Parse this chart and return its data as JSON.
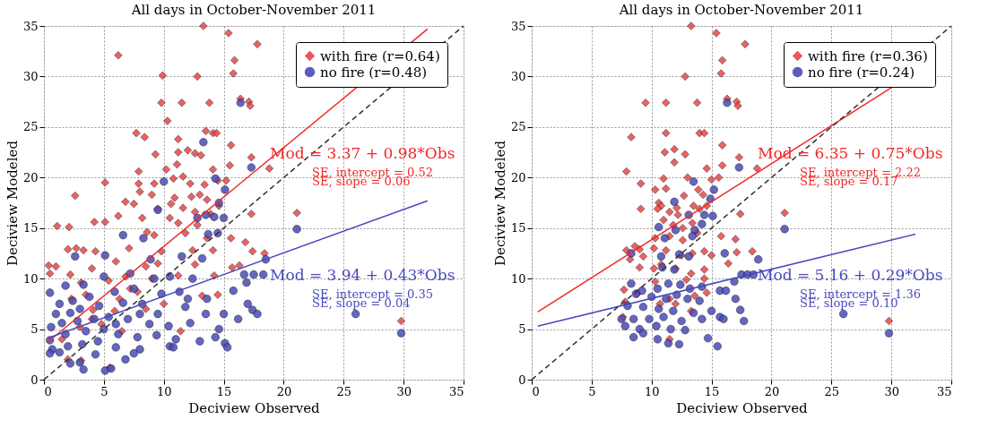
{
  "chart_data": [
    {
      "type": "scatter",
      "title": "All days in October-November 2011",
      "xlabel": "Deciview Observed",
      "ylabel": "Deciview Modeled",
      "xlim": [
        0,
        35
      ],
      "ylim": [
        0,
        35
      ],
      "xticks": [
        0,
        5,
        10,
        15,
        20,
        25,
        30,
        35
      ],
      "yticks": [
        0,
        5,
        10,
        15,
        20,
        25,
        30,
        35
      ],
      "grid": true,
      "legend": "top right",
      "series": [
        {
          "name": "with fire (r=0.64)",
          "color": "#e8474a",
          "marker": "diamond",
          "x": [
            13.3,
            15.4,
            17.8,
            6.2,
            15.9,
            9.9,
            12.8,
            15.8,
            9.8,
            11.5,
            13.8,
            16.4,
            17.1,
            17.2,
            10.3,
            7.7,
            8.4,
            13.5,
            14.1,
            14.4,
            11.2,
            12,
            12.6,
            9.3,
            11.2,
            13.1,
            15.6,
            11.1,
            10.2,
            7.9,
            14.1,
            15.5,
            17.3,
            18.8,
            5.1,
            7.9,
            9.2,
            11.6,
            10.8,
            12.2,
            13.4,
            14.5,
            15.2,
            8,
            9,
            10.9,
            12.3,
            13,
            13.6,
            6.8,
            7.5,
            10.6,
            11.6,
            14.6,
            2.6,
            9.5,
            12.6,
            13.9,
            17.3,
            21.1,
            6.2,
            8.2,
            10.5,
            11.2,
            12.8,
            1.1,
            2.1,
            4.2,
            5.1,
            8.6,
            9.2,
            11.8,
            13.6,
            15.6,
            16.8,
            2,
            2.7,
            3.3,
            4.3,
            7.1,
            9.8,
            12.4,
            14.1,
            17.4,
            18.4,
            0.4,
            0.5,
            1,
            2.2,
            4,
            6,
            8.5,
            12.6,
            15.7,
            16.3,
            3.1,
            5.4,
            6.8,
            9,
            11.2,
            14.2,
            2.3,
            3.5,
            6.3,
            7.8,
            13.2,
            14.5,
            4.1,
            5.9,
            8.5,
            10,
            3,
            4.8,
            6.5,
            11.4,
            2,
            3.1,
            5.5,
            29.8,
            1.5,
            4,
            7.2,
            9.5
          ],
          "values": [
            35,
            34.3,
            33.2,
            32.1,
            31.6,
            30.1,
            30,
            30.3,
            27.4,
            27.4,
            27.4,
            27.8,
            27.5,
            27.1,
            25.6,
            24.4,
            24,
            24.6,
            24.4,
            24.4,
            23.8,
            22.7,
            22.4,
            22.3,
            22.5,
            22.2,
            23.2,
            21.3,
            20.8,
            20.6,
            20.8,
            21.2,
            22,
            20.9,
            19.5,
            19.4,
            19.4,
            20.1,
            19.9,
            19.4,
            19.3,
            19.7,
            19.7,
            18.6,
            18.3,
            18,
            18.1,
            18.3,
            17.8,
            17.6,
            17.4,
            17.4,
            17,
            17.2,
            18.2,
            16.9,
            16.6,
            16.4,
            16.4,
            16.5,
            16.2,
            16,
            16,
            15.5,
            15.3,
            15.2,
            15.1,
            15.6,
            15.6,
            14.6,
            14.3,
            14.5,
            14,
            14,
            13.6,
            12.9,
            13,
            12.8,
            12.7,
            13,
            12.7,
            12.8,
            12.8,
            12.7,
            12.5,
            11.3,
            10.5,
            11.2,
            10.4,
            11,
            11.7,
            11.2,
            11.4,
            11.1,
            11.3,
            9.6,
            9.8,
            10.2,
            10,
            10.3,
            10.3,
            8,
            8.4,
            8,
            8.7,
            8.3,
            8.4,
            6.9,
            6.8,
            7,
            7.5,
            5.2,
            5.5,
            4.8,
            4.8,
            2,
            1.9,
            1.2,
            5.8,
            4,
            6,
            9,
            11.5
          ]
        },
        {
          "name": "no fire    (r=0.48)",
          "color": "#4a4cb8",
          "marker": "circle",
          "x": [
            16.4,
            13.3,
            17.3,
            14.3,
            10,
            15.1,
            14.6,
            9.5,
            12.8,
            13.5,
            14.2,
            15,
            21.1,
            6.6,
            8.3,
            13.7,
            14.5,
            18.5,
            2.6,
            5.1,
            8.9,
            11.5,
            13.2,
            0.5,
            1.8,
            3.3,
            5,
            7.2,
            9.2,
            10.5,
            12.4,
            16.7,
            17.5,
            18.3,
            16.9,
            1.3,
            2.4,
            3.8,
            5.9,
            7.5,
            9.8,
            11.3,
            13.6,
            15.8,
            17,
            17.4,
            1,
            2.2,
            3,
            4.6,
            6.6,
            8.2,
            9.5,
            11.8,
            13.5,
            15,
            16.2,
            0.6,
            1.5,
            2.8,
            4.2,
            5.4,
            7,
            8.8,
            10.4,
            12.2,
            14.6,
            17.8,
            26,
            0.5,
            1.8,
            3.5,
            5,
            6.2,
            7.8,
            9.4,
            11,
            13,
            14.3,
            0.7,
            2,
            3.2,
            4.5,
            6,
            8,
            10.5,
            0.5,
            1.3,
            7.5,
            10.8,
            15.1,
            2.2,
            3,
            3.3,
            5.1,
            5.6,
            6.8,
            29.8,
            15.3,
            4.3,
            6,
            8,
            12
          ],
          "values": [
            27.4,
            23.5,
            21,
            19.9,
            19.6,
            18.8,
            17.5,
            16.8,
            16,
            16.3,
            16.1,
            16,
            14.9,
            14.3,
            14,
            14.4,
            14.5,
            11.9,
            12.2,
            12.3,
            11.9,
            12.2,
            12,
            8.6,
            9.3,
            9.4,
            10.2,
            10.5,
            10,
            10.2,
            10,
            10.4,
            10.4,
            10.4,
            9.6,
            7.5,
            7.8,
            8.2,
            8.7,
            9,
            8.5,
            8.7,
            8,
            8.8,
            7.5,
            6.9,
            6.5,
            6.6,
            7,
            7.3,
            7.6,
            7.5,
            6.5,
            7.2,
            6.5,
            6.5,
            6,
            5.2,
            5.6,
            5.8,
            6,
            6.2,
            6,
            5.5,
            5.3,
            5.6,
            5,
            6.5,
            6.5,
            3.9,
            4.5,
            4.8,
            5,
            4.5,
            4.2,
            4.4,
            4,
            3.8,
            4.2,
            3,
            3.3,
            3.5,
            3.8,
            3.2,
            3,
            3.3,
            2.6,
            2.7,
            2.6,
            3.2,
            3.6,
            1.6,
            1.7,
            1,
            0.9,
            1.1,
            2,
            4.6,
            3.2,
            2.5,
            5.5,
            6.5,
            8
          ]
        },
        {
          "type": "line",
          "color": "#f02828",
          "x": [
            0.3,
            32
          ],
          "values": [
            3.7,
            34.7
          ]
        },
        {
          "type": "line",
          "color": "#4848c0",
          "x": [
            0.3,
            32
          ],
          "values": [
            4.1,
            17.7
          ]
        },
        {
          "type": "line",
          "color": "#303030",
          "line_style": "dashed",
          "x": [
            0,
            35
          ],
          "values": [
            0,
            35
          ]
        }
      ],
      "annotations": [
        "Mod = 3.37 + 0.98*Obs",
        "SE, intercept = 0.52",
        "SE, slope       = 0.06",
        "Mod = 3.94 + 0.43*Obs",
        "SE, intercept  = 0.35",
        "SE, slope        = 0.04"
      ]
    },
    {
      "type": "scatter",
      "title": "All days in October-November 2011",
      "xlabel": "Deciview Observed",
      "ylabel": "Deciview Modeled",
      "xlim": [
        0,
        35
      ],
      "ylim": [
        0,
        35
      ],
      "xticks": [
        0,
        5,
        10,
        15,
        20,
        25,
        30,
        35
      ],
      "yticks": [
        0,
        5,
        10,
        15,
        20,
        25,
        30,
        35
      ],
      "grid": true,
      "legend": "top right",
      "series": [
        {
          "name": "with fire (r=0.36)",
          "color": "#e8474a",
          "marker": "diamond",
          "x": [
            13.3,
            15.4,
            17.8,
            15.9,
            12.8,
            15.8,
            9.5,
            11.2,
            13.8,
            16.3,
            17.1,
            17.2,
            8.3,
            11.2,
            14,
            14.4,
            11.1,
            11.9,
            12.8,
            15.9,
            7.9,
            11.9,
            9.1,
            11,
            13,
            14.6,
            15.6,
            15.9,
            17.3,
            18.8,
            10.3,
            11.2,
            12.7,
            13.9,
            14.3,
            15,
            10.6,
            10.8,
            12.1,
            13.5,
            14,
            9.1,
            10.5,
            11.5,
            12.2,
            14.6,
            17.4,
            21.1,
            11,
            11.8,
            12.6,
            13.4,
            13.8,
            15.8,
            17,
            10.3,
            11.5,
            12.6,
            8.6,
            9,
            9.3,
            10.2,
            11.2,
            12.5,
            13.4,
            14.4,
            15,
            17.1,
            18.4,
            7.9,
            8.2,
            9,
            10.2,
            10.8,
            12,
            13.3,
            14.4,
            16.4,
            10.3,
            12.9,
            14.4,
            7.7,
            8.8,
            11.5,
            13.6,
            14.6,
            7.8,
            10.7,
            12,
            13.3,
            7.6,
            11.5,
            29.8
          ],
          "values": [
            35,
            34.3,
            33.2,
            31.6,
            30,
            30.3,
            27.4,
            27.4,
            27.4,
            27.8,
            27.5,
            27.1,
            24,
            24.4,
            24.4,
            24.4,
            22.5,
            22.8,
            22.3,
            23.2,
            20.6,
            21.5,
            19.4,
            19.9,
            20,
            20.9,
            20,
            21.2,
            22,
            20.9,
            18.8,
            18.9,
            18.2,
            18.8,
            18.3,
            19.8,
            17.5,
            17.2,
            17,
            17.2,
            16.9,
            16.9,
            16.9,
            16.6,
            16.3,
            17.2,
            16.4,
            16.5,
            15.8,
            15.3,
            15,
            15.5,
            14.5,
            14.2,
            13.9,
            14,
            14.2,
            13.8,
            13.2,
            12.9,
            12.2,
            13,
            12.8,
            12.3,
            12.5,
            12.7,
            12.3,
            12.6,
            12.7,
            12.8,
            11.9,
            11.1,
            11,
            11.4,
            11,
            10.5,
            10.9,
            11.5,
            9.7,
            9.9,
            10,
            8.9,
            8.5,
            8,
            8.3,
            8.6,
            7.7,
            7.5,
            7.5,
            6.8,
            6.2,
            4,
            5.8
          ]
        },
        {
          "name": "no fire    (r=0.24)",
          "color": "#4a4cb8",
          "marker": "circle",
          "x": [
            16.3,
            13.5,
            17.3,
            15.2,
            14.9,
            11.9,
            13.1,
            14.4,
            15.1,
            21.1,
            10.6,
            12,
            13.6,
            14.2,
            11.1,
            13.4,
            16.1,
            18.9,
            8.3,
            10.8,
            12.3,
            13.1,
            10.9,
            11.9,
            17.5,
            18,
            18.5,
            16.9,
            8.3,
            9.2,
            10.5,
            11.4,
            12.4,
            13.2,
            14.2,
            15.7,
            16.2,
            8.7,
            10,
            11.2,
            12.1,
            13,
            14,
            17,
            17.4,
            8,
            9.3,
            10.6,
            11.8,
            13.5,
            15,
            15.7,
            7.5,
            8.5,
            9.8,
            11,
            12.5,
            14.2,
            16,
            17.7,
            7.8,
            9,
            10.4,
            11.6,
            12.8,
            8.5,
            9.3,
            10.5,
            11.4,
            12.3,
            14.7,
            15.5,
            26,
            29.8
          ],
          "values": [
            27.4,
            19.6,
            21,
            18.8,
            17.9,
            17.6,
            16.3,
            16.3,
            16.2,
            14.9,
            15.1,
            14.8,
            14.8,
            15.4,
            14,
            14.2,
            12.5,
            11.9,
            12.5,
            12.2,
            12.4,
            12.2,
            11.1,
            10.9,
            10.4,
            10.4,
            10.4,
            9.7,
            9.5,
            8.8,
            9,
            9.5,
            9.4,
            9,
            9.2,
            8.8,
            8.8,
            8.5,
            8.2,
            8,
            8.4,
            8,
            7.8,
            8,
            6.9,
            7.3,
            7.2,
            7,
            6.8,
            6.6,
            6.8,
            6.2,
            6,
            6,
            6,
            6.2,
            5.8,
            6,
            6,
            5.8,
            5.3,
            5,
            5.3,
            5,
            4.9,
            4.2,
            4.6,
            4,
            3.6,
            3.5,
            4.1,
            3.3,
            6.5,
            4.6
          ]
        },
        {
          "type": "line",
          "color": "#f02828",
          "x": [
            0.5,
            30
          ],
          "values": [
            6.7,
            28.9
          ]
        },
        {
          "type": "line",
          "color": "#4848c0",
          "x": [
            0.5,
            32
          ],
          "values": [
            5.3,
            14.4
          ]
        },
        {
          "type": "line",
          "color": "#303030",
          "line_style": "dashed",
          "x": [
            0,
            35
          ],
          "values": [
            0,
            35
          ]
        }
      ],
      "annotations": [
        "Mod = 6.35 + 0.75*Obs",
        "SE, intercept = 2.22",
        "SE, slope       = 0.17",
        "Mod = 5.16 + 0.29*Obs",
        "SE, intercept  = 1.36",
        "SE, slope        = 0.10"
      ]
    }
  ]
}
